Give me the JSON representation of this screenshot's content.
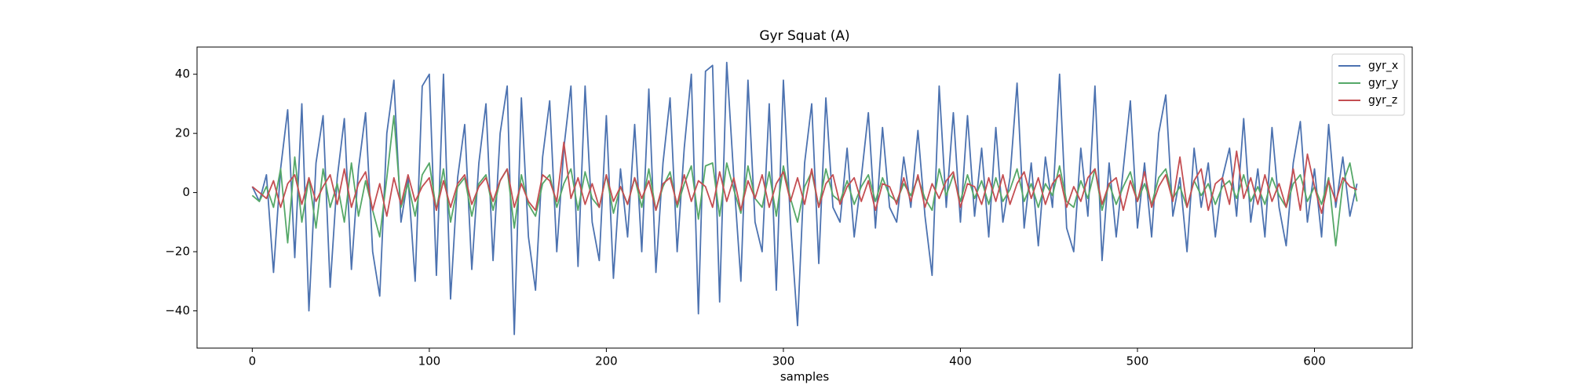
{
  "chart_data": {
    "type": "line",
    "title": "Gyr Squat (A)",
    "x_label": "samples",
    "x": [
      0,
      4,
      8,
      12,
      16,
      20,
      24,
      28,
      32,
      36,
      40,
      44,
      48,
      52,
      56,
      60,
      64,
      68,
      72,
      76,
      80,
      84,
      88,
      92,
      96,
      100,
      104,
      108,
      112,
      116,
      120,
      124,
      128,
      132,
      136,
      140,
      144,
      148,
      152,
      156,
      160,
      164,
      168,
      172,
      176,
      180,
      184,
      188,
      192,
      196,
      200,
      204,
      208,
      212,
      216,
      220,
      224,
      228,
      232,
      236,
      240,
      244,
      248,
      252,
      256,
      260,
      264,
      268,
      272,
      276,
      280,
      284,
      288,
      292,
      296,
      300,
      304,
      308,
      312,
      316,
      320,
      324,
      328,
      332,
      336,
      340,
      344,
      348,
      352,
      356,
      360,
      364,
      368,
      372,
      376,
      380,
      384,
      388,
      392,
      396,
      400,
      404,
      408,
      412,
      416,
      420,
      424,
      428,
      432,
      436,
      440,
      444,
      448,
      452,
      456,
      460,
      464,
      468,
      472,
      476,
      480,
      484,
      488,
      492,
      496,
      500,
      504,
      508,
      512,
      516,
      520,
      524,
      528,
      532,
      536,
      540,
      544,
      548,
      552,
      556,
      560,
      564,
      568,
      572,
      576,
      580,
      584,
      588,
      592,
      596,
      600,
      604,
      608,
      612,
      616,
      620,
      624
    ],
    "series": [
      {
        "name": "gyr_x",
        "color": "#4c72b0",
        "values": [
          2,
          -3,
          6,
          -27,
          8,
          28,
          -22,
          30,
          -40,
          10,
          26,
          -32,
          5,
          25,
          -26,
          8,
          27,
          -20,
          -35,
          20,
          38,
          -10,
          5,
          -30,
          36,
          40,
          -28,
          40,
          -36,
          5,
          23,
          -26,
          10,
          30,
          -23,
          20,
          36,
          -48,
          32,
          -15,
          -33,
          12,
          31,
          -20,
          15,
          36,
          -25,
          36,
          -10,
          -23,
          26,
          -29,
          8,
          -15,
          23,
          -20,
          35,
          -27,
          10,
          32,
          -20,
          15,
          40,
          -41,
          41,
          43,
          -37,
          44,
          5,
          -30,
          38,
          -10,
          -20,
          30,
          -33,
          38,
          -10,
          -45,
          10,
          30,
          -24,
          32,
          -5,
          -10,
          15,
          -15,
          5,
          27,
          -12,
          22,
          -5,
          -10,
          12,
          -5,
          21,
          -8,
          -28,
          36,
          -5,
          27,
          -10,
          26,
          -8,
          15,
          -15,
          22,
          -10,
          5,
          37,
          -12,
          10,
          -18,
          12,
          -5,
          40,
          -12,
          -20,
          15,
          -8,
          36,
          -23,
          10,
          -15,
          8,
          31,
          -12,
          10,
          -15,
          20,
          33,
          -8,
          5,
          -20,
          15,
          -5,
          10,
          -15,
          5,
          15,
          -8,
          25,
          -10,
          8,
          -15,
          22,
          -5,
          -18,
          10,
          24,
          -10,
          8,
          -15,
          23,
          -5,
          12,
          -8,
          3
        ]
      },
      {
        "name": "gyr_y",
        "color": "#55a868",
        "values": [
          -1,
          -3,
          2,
          -5,
          8,
          -17,
          12,
          -10,
          5,
          -12,
          8,
          -5,
          3,
          -10,
          10,
          -8,
          4,
          -6,
          -15,
          5,
          26,
          -5,
          3,
          -8,
          6,
          10,
          -6,
          8,
          -10,
          2,
          5,
          -8,
          3,
          6,
          -6,
          4,
          8,
          -12,
          6,
          -4,
          -8,
          3,
          6,
          -5,
          3,
          8,
          -6,
          7,
          -2,
          -5,
          6,
          -7,
          2,
          -4,
          5,
          -5,
          8,
          -6,
          2,
          7,
          -5,
          3,
          9,
          -9,
          9,
          10,
          -8,
          10,
          1,
          -7,
          9,
          -2,
          -5,
          7,
          -8,
          9,
          -2,
          -10,
          2,
          7,
          -5,
          8,
          -1,
          -3,
          4,
          -4,
          2,
          6,
          -3,
          5,
          -1,
          -3,
          3,
          -1,
          5,
          -2,
          -6,
          8,
          -1,
          6,
          -3,
          6,
          -2,
          4,
          -4,
          5,
          -3,
          1,
          8,
          -3,
          3,
          -5,
          3,
          -1,
          9,
          -3,
          -5,
          4,
          -2,
          8,
          -6,
          3,
          -4,
          2,
          7,
          -3,
          3,
          -4,
          5,
          8,
          -2,
          2,
          -5,
          4,
          -1,
          3,
          -4,
          2,
          4,
          -2,
          6,
          -3,
          2,
          -4,
          5,
          -1,
          -5,
          3,
          6,
          -3,
          2,
          -4,
          5,
          -18,
          3,
          10,
          -3
        ]
      },
      {
        "name": "gyr_z",
        "color": "#c44e52",
        "values": [
          2,
          0,
          -2,
          4,
          -5,
          3,
          6,
          -4,
          5,
          -3,
          2,
          6,
          -4,
          8,
          -5,
          3,
          7,
          -6,
          3,
          -8,
          5,
          -4,
          6,
          -3,
          2,
          5,
          -6,
          4,
          -5,
          3,
          6,
          -4,
          2,
          5,
          -3,
          4,
          8,
          -5,
          3,
          -3,
          -6,
          6,
          4,
          -3,
          17,
          -2,
          5,
          -4,
          3,
          -5,
          6,
          -3,
          2,
          -4,
          5,
          -2,
          4,
          -6,
          3,
          5,
          -4,
          6,
          -3,
          4,
          2,
          -5,
          7,
          -3,
          5,
          -6,
          4,
          -2,
          6,
          -5,
          3,
          7,
          -3,
          5,
          -4,
          8,
          -5,
          3,
          6,
          -4,
          2,
          5,
          -3,
          4,
          -6,
          3,
          2,
          -4,
          5,
          -3,
          6,
          -5,
          3,
          -2,
          4,
          7,
          -5,
          3,
          2,
          -4,
          5,
          -3,
          6,
          -4,
          3,
          7,
          -2,
          5,
          -4,
          3,
          6,
          -5,
          2,
          -3,
          5,
          8,
          -4,
          3,
          5,
          -6,
          4,
          -3,
          7,
          -5,
          2,
          6,
          -3,
          12,
          -5,
          4,
          8,
          -6,
          3,
          5,
          -4,
          14,
          -2,
          5,
          -4,
          6,
          -3,
          3,
          -5,
          8,
          -6,
          13,
          2,
          -7,
          4,
          -3,
          5,
          2,
          1
        ]
      }
    ],
    "xlim": [
      -31.2,
      655.2
    ],
    "ylim": [
      -52.6,
      49.2
    ],
    "xticks": [
      0,
      100,
      200,
      300,
      400,
      500,
      600
    ],
    "yticks": [
      {
        "value": -40,
        "label": "−40"
      },
      {
        "value": -20,
        "label": "−20"
      },
      0,
      20,
      40
    ],
    "grid": false,
    "legend": "upper right"
  }
}
